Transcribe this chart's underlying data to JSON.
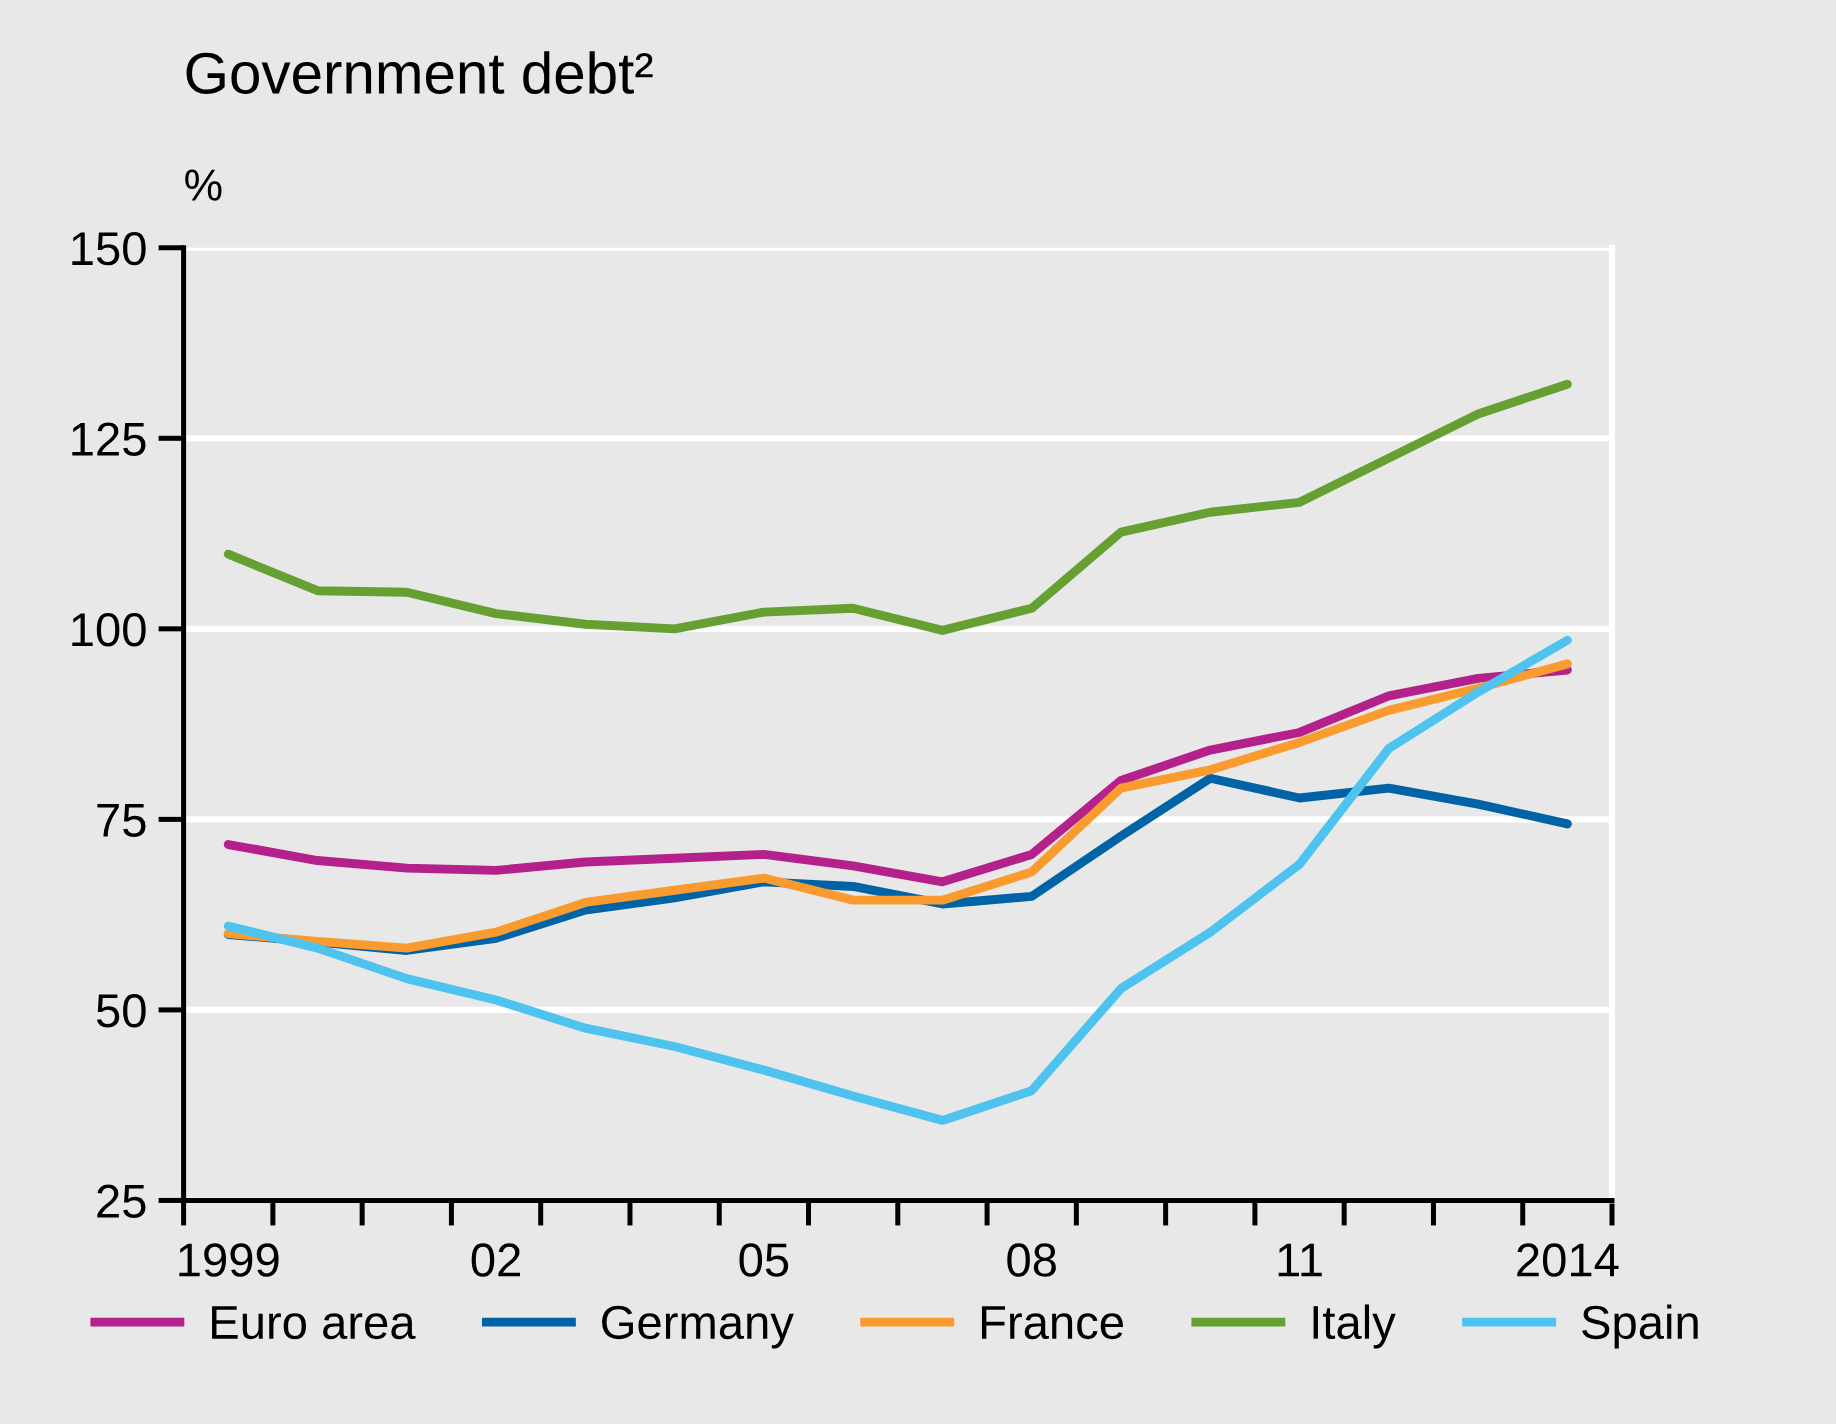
{
  "chart_data": {
    "type": "line",
    "title": "Government debt²",
    "ylabel": "%",
    "x": [
      1999,
      2000,
      2001,
      2002,
      2003,
      2004,
      2005,
      2006,
      2007,
      2008,
      2009,
      2010,
      2011,
      2012,
      2013,
      2014
    ],
    "series": [
      {
        "name": "Euro area",
        "color": "#b5218a",
        "values": [
          71.7,
          69.6,
          68.6,
          68.3,
          69.4,
          69.9,
          70.4,
          68.9,
          66.8,
          70.4,
          80.1,
          84.1,
          86.4,
          91.2,
          93.5,
          94.6
        ]
      },
      {
        "name": "Germany",
        "color": "#0063a6",
        "values": [
          59.9,
          58.9,
          57.8,
          59.4,
          63.1,
          64.7,
          66.8,
          66.2,
          63.9,
          64.9,
          72.8,
          80.4,
          77.8,
          79.1,
          77.0,
          74.4
        ]
      },
      {
        "name": "France",
        "color": "#f99b2e",
        "values": [
          60.0,
          59.0,
          58.1,
          60.2,
          64.1,
          65.7,
          67.3,
          64.4,
          64.4,
          68.1,
          79.1,
          81.5,
          85.1,
          89.3,
          92.2,
          95.4
        ]
      },
      {
        "name": "Italy",
        "color": "#66a033",
        "values": [
          109.8,
          105.0,
          104.8,
          102.0,
          100.6,
          100.0,
          102.2,
          102.7,
          99.8,
          102.7,
          112.7,
          115.3,
          116.6,
          122.4,
          128.2,
          132.1
        ]
      },
      {
        "name": "Spain",
        "color": "#4fc3f0",
        "values": [
          61.0,
          58.1,
          54.1,
          51.3,
          47.6,
          45.2,
          42.1,
          38.7,
          35.5,
          39.4,
          52.8,
          60.2,
          69.1,
          84.3,
          91.7,
          98.5
        ]
      }
    ],
    "xlim": [
      1998.5,
      2014.5
    ],
    "xticks": [
      {
        "value": 1998.5,
        "label": null
      },
      {
        "value": 1999,
        "label": "1999"
      },
      {
        "value": 1999.5,
        "label": null
      },
      {
        "value": 2000.5,
        "label": null
      },
      {
        "value": 2001.5,
        "label": null
      },
      {
        "value": 2002,
        "label": "02"
      },
      {
        "value": 2002.5,
        "label": null
      },
      {
        "value": 2003.5,
        "label": null
      },
      {
        "value": 2004.5,
        "label": null
      },
      {
        "value": 2005,
        "label": "05"
      },
      {
        "value": 2005.5,
        "label": null
      },
      {
        "value": 2006.5,
        "label": null
      },
      {
        "value": 2007.5,
        "label": null
      },
      {
        "value": 2008,
        "label": "08"
      },
      {
        "value": 2008.5,
        "label": null
      },
      {
        "value": 2009.5,
        "label": null
      },
      {
        "value": 2010.5,
        "label": null
      },
      {
        "value": 2011,
        "label": "11"
      },
      {
        "value": 2011.5,
        "label": null
      },
      {
        "value": 2012.5,
        "label": null
      },
      {
        "value": 2013.5,
        "label": null
      },
      {
        "value": 2014,
        "label": "2014"
      },
      {
        "value": 2014.5,
        "label": null
      }
    ],
    "ylim": [
      25,
      150
    ],
    "yticks": [
      25,
      50,
      75,
      100,
      125,
      150
    ],
    "grid": "y",
    "legend": "bottom",
    "marker": "none",
    "line_style": "solid"
  }
}
